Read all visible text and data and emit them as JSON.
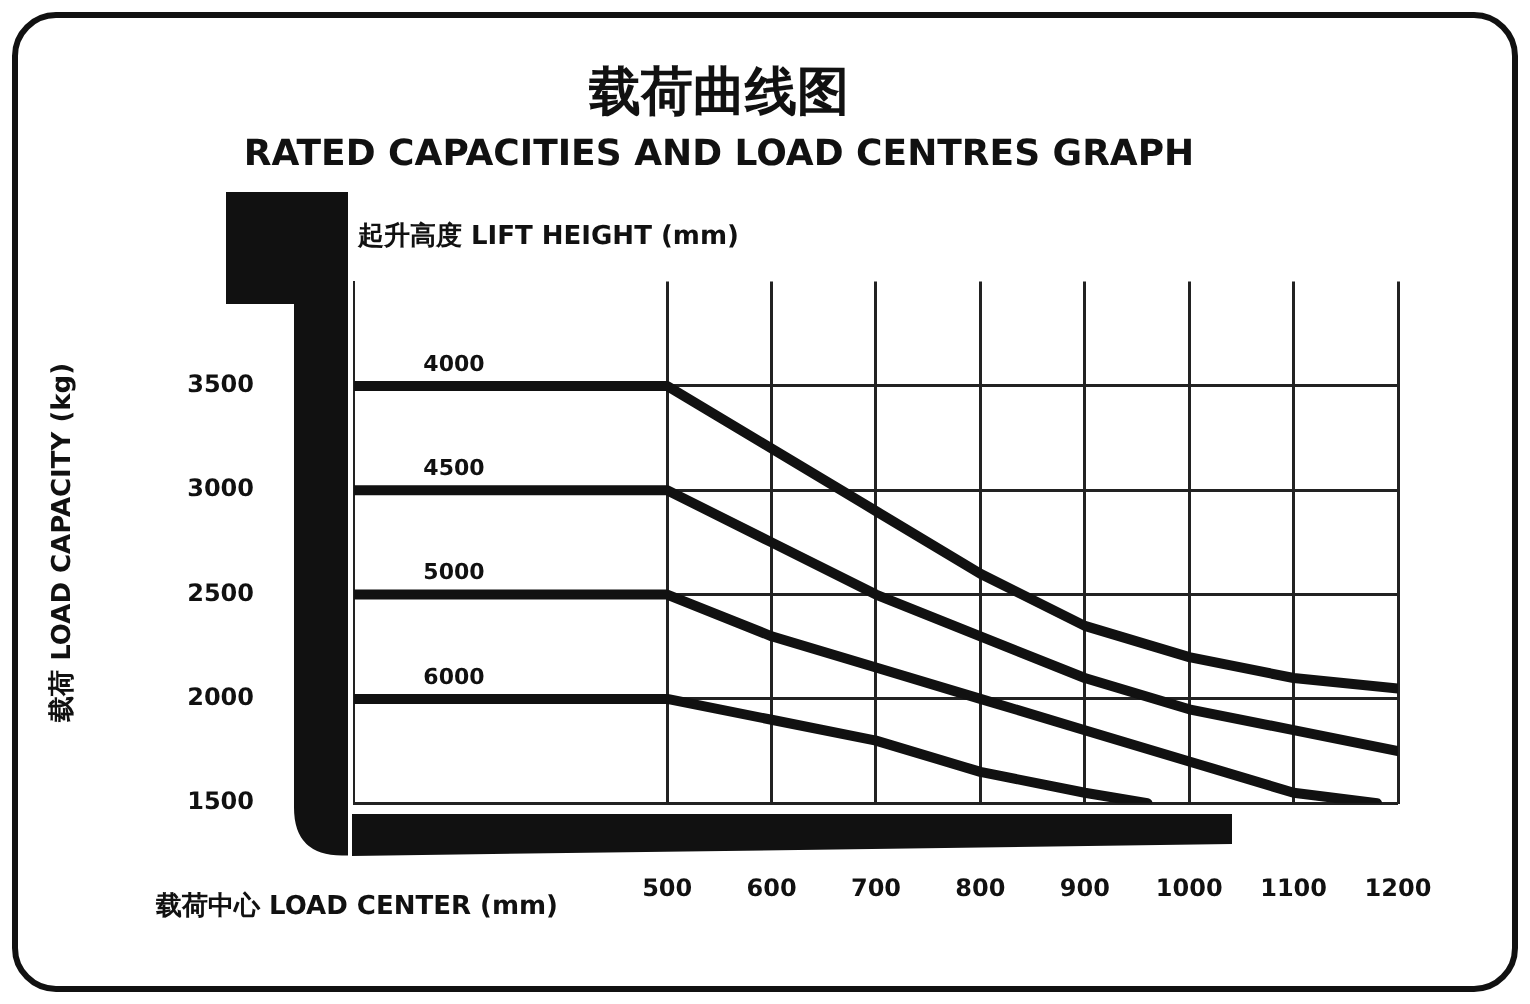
{
  "chart_data": {
    "type": "line",
    "title": "载荷曲线图",
    "subtitle": "RATED CAPACITIES AND LOAD CENTRES GRAPH",
    "xlabel": "载荷中心 LOAD CENTER (mm)",
    "ylabel": "载荷 LOAD CAPACITY (kg)",
    "legend_title": "起升高度 LIFT HEIGHT (mm)",
    "xlim": [
      200,
      1200
    ],
    "xticks": [
      500,
      600,
      700,
      800,
      900,
      1000,
      1100,
      1200
    ],
    "ylim": [
      1500,
      4000
    ],
    "yticks": [
      1500,
      2000,
      2500,
      3000,
      3500
    ],
    "grid": true,
    "legend": false,
    "marker": "none",
    "series": [
      {
        "name": "4000",
        "color": "#111111",
        "x": [
          200,
          500,
          600,
          700,
          800,
          900,
          1000,
          1100,
          1200
        ],
        "values": [
          3500,
          3500,
          3200,
          2900,
          2600,
          2350,
          2200,
          2100,
          2050
        ]
      },
      {
        "name": "4500",
        "color": "#111111",
        "x": [
          200,
          500,
          600,
          700,
          800,
          900,
          1000,
          1100,
          1200
        ],
        "values": [
          3000,
          3000,
          2750,
          2500,
          2300,
          2100,
          1950,
          1850,
          1750
        ]
      },
      {
        "name": "5000",
        "color": "#111111",
        "x": [
          200,
          500,
          600,
          700,
          800,
          900,
          1000,
          1100,
          1180
        ],
        "values": [
          2500,
          2500,
          2300,
          2150,
          2000,
          1850,
          1700,
          1550,
          1500
        ]
      },
      {
        "name": "6000",
        "color": "#111111",
        "x": [
          200,
          500,
          600,
          700,
          800,
          900,
          960
        ],
        "values": [
          2000,
          2000,
          1900,
          1800,
          1650,
          1550,
          1500
        ]
      }
    ]
  }
}
